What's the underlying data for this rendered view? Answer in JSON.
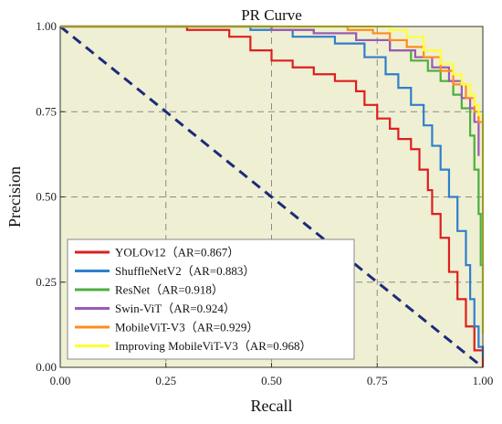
{
  "chart_data": {
    "type": "line",
    "title": "PR Curve",
    "xlabel": "Recall",
    "ylabel": "Precision",
    "xlim": [
      0,
      1
    ],
    "ylim": [
      0,
      1
    ],
    "x_ticks": [
      "0.00",
      "0.25",
      "0.50",
      "0.75",
      "1.00"
    ],
    "y_ticks": [
      "0.00",
      "0.25",
      "0.50",
      "0.75",
      "1.00"
    ],
    "grid": true,
    "legend_position": "bottom-left",
    "background_color": "#efefd3",
    "diagonal": {
      "x": [
        0,
        1
      ],
      "y": [
        1,
        0
      ],
      "color": "#1c2b7a",
      "style": "dashed"
    },
    "series": [
      {
        "name": "YOLOv12（AR=0.867）",
        "color": "#dd1f1f",
        "x": [
          0,
          0.3,
          0.4,
          0.45,
          0.5,
          0.55,
          0.6,
          0.65,
          0.7,
          0.72,
          0.75,
          0.78,
          0.8,
          0.83,
          0.85,
          0.87,
          0.88,
          0.9,
          0.92,
          0.94,
          0.96,
          0.98,
          1.0
        ],
        "y": [
          1,
          0.99,
          0.97,
          0.93,
          0.9,
          0.88,
          0.86,
          0.84,
          0.81,
          0.77,
          0.73,
          0.7,
          0.67,
          0.64,
          0.58,
          0.52,
          0.45,
          0.38,
          0.28,
          0.2,
          0.12,
          0.05,
          0.0
        ]
      },
      {
        "name": "ShuffleNetV2（AR=0.883）",
        "color": "#2f7fcc",
        "x": [
          0,
          0.45,
          0.55,
          0.65,
          0.72,
          0.77,
          0.8,
          0.83,
          0.86,
          0.88,
          0.9,
          0.92,
          0.94,
          0.96,
          0.97,
          0.98,
          0.99,
          1.0
        ],
        "y": [
          1,
          0.99,
          0.97,
          0.95,
          0.91,
          0.86,
          0.82,
          0.77,
          0.71,
          0.65,
          0.58,
          0.5,
          0.4,
          0.3,
          0.2,
          0.12,
          0.06,
          0.03
        ]
      },
      {
        "name": "ResNet（AR=0.918）",
        "color": "#4caf3f",
        "x": [
          0,
          0.5,
          0.6,
          0.7,
          0.78,
          0.83,
          0.87,
          0.9,
          0.93,
          0.95,
          0.97,
          0.98,
          0.99,
          0.995,
          1.0
        ],
        "y": [
          1,
          0.99,
          0.98,
          0.96,
          0.93,
          0.9,
          0.87,
          0.84,
          0.8,
          0.76,
          0.68,
          0.58,
          0.45,
          0.3,
          0.1
        ]
      },
      {
        "name": "Swin-ViT（AR=0.924）",
        "color": "#9b59b6",
        "x": [
          0,
          0.5,
          0.6,
          0.7,
          0.78,
          0.84,
          0.88,
          0.92,
          0.95,
          0.97,
          0.98,
          0.99
        ],
        "y": [
          1,
          0.99,
          0.98,
          0.96,
          0.93,
          0.91,
          0.88,
          0.84,
          0.79,
          0.76,
          0.72,
          0.62
        ]
      },
      {
        "name": "MobileViT-V3（AR=0.929）",
        "color": "#ff8c1a",
        "x": [
          0,
          0.6,
          0.68,
          0.74,
          0.78,
          0.82,
          0.86,
          0.9,
          0.93,
          0.96,
          0.98,
          0.99,
          1.0
        ],
        "y": [
          1,
          1.0,
          0.99,
          0.98,
          0.96,
          0.94,
          0.91,
          0.87,
          0.83,
          0.79,
          0.75,
          0.72,
          0.7
        ]
      },
      {
        "name": "Improving MobileViT-V3（AR=0.968）",
        "color": "#ffff33",
        "x": [
          0,
          0.72,
          0.78,
          0.82,
          0.86,
          0.9,
          0.93,
          0.95,
          0.97,
          0.98,
          0.99,
          1.0,
          1.0
        ],
        "y": [
          1,
          1.0,
          0.99,
          0.97,
          0.93,
          0.89,
          0.86,
          0.83,
          0.8,
          0.77,
          0.74,
          0.5,
          0.1
        ]
      }
    ]
  }
}
